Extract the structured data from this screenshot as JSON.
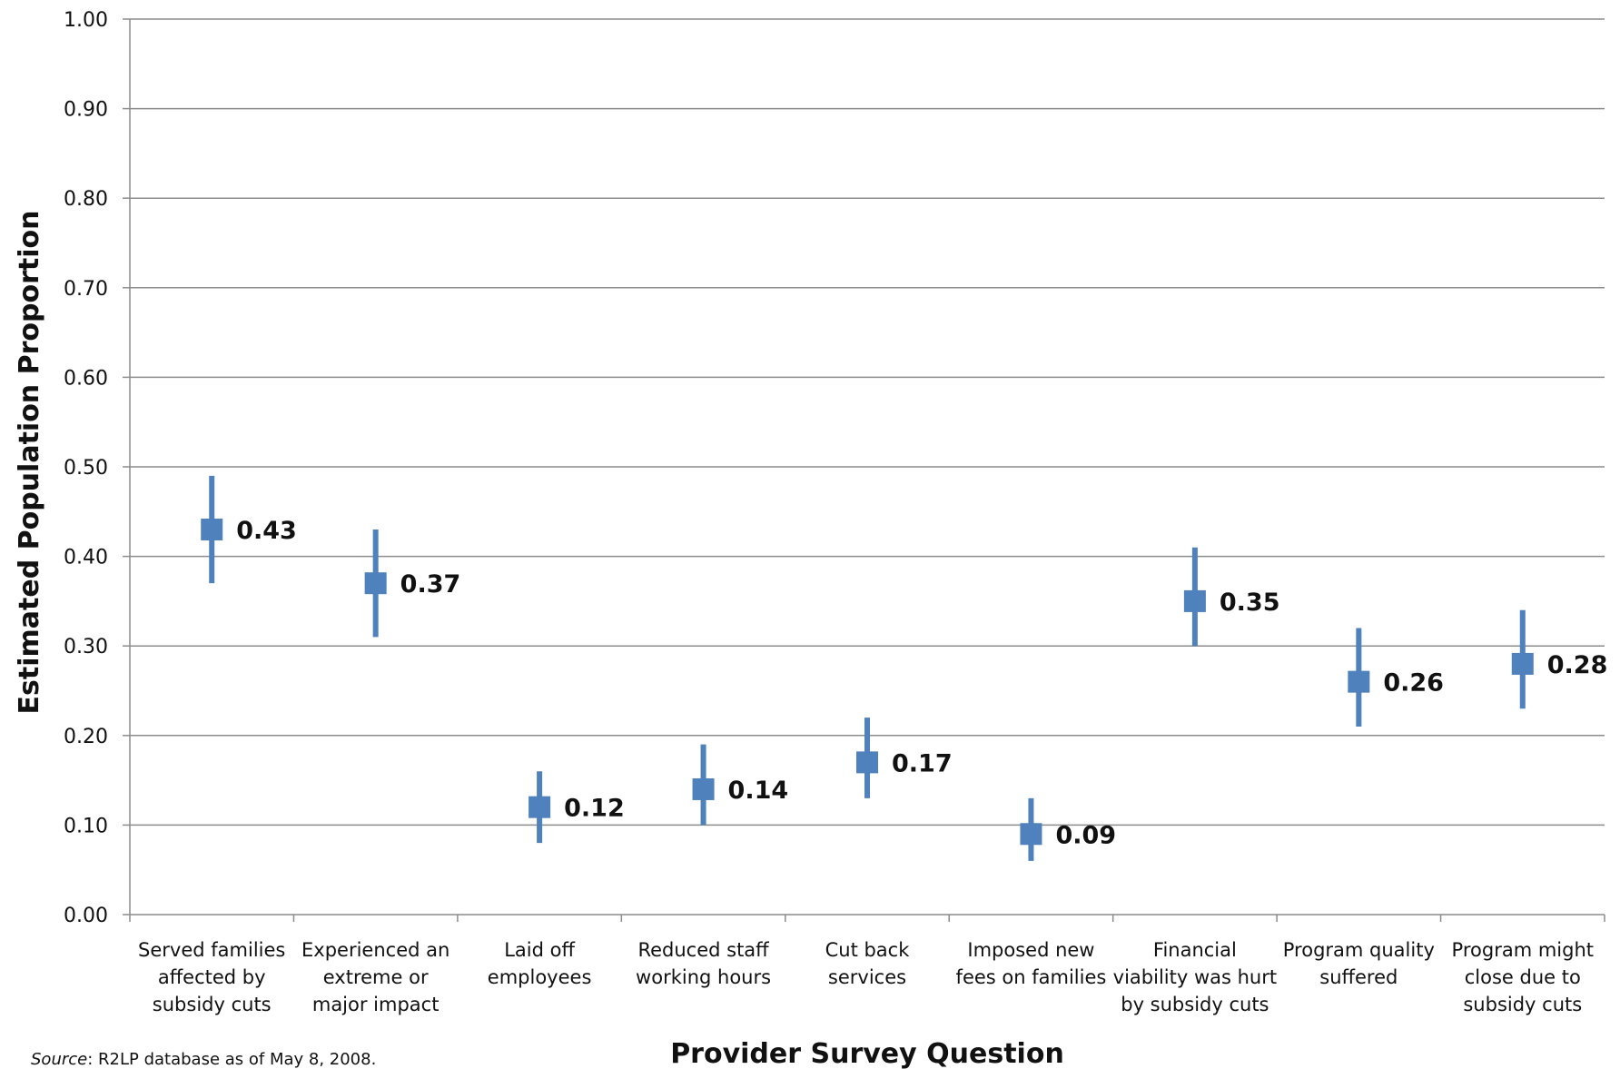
{
  "chart_data": {
    "type": "scatter",
    "xlabel": "Provider Survey Question",
    "ylabel": "Estimated Population Proportion",
    "ylim": [
      0,
      1
    ],
    "yticks": [
      "0.00",
      "0.10",
      "0.20",
      "0.30",
      "0.40",
      "0.50",
      "0.60",
      "0.70",
      "0.80",
      "0.90",
      "1.00"
    ],
    "grid": "horizontal",
    "accent_color": "#4F81BD",
    "categories": [
      [
        "Served families",
        "affected by",
        "subsidy cuts"
      ],
      [
        "Experienced an",
        "extreme or",
        "major impact"
      ],
      [
        "Laid off",
        "employees"
      ],
      [
        "Reduced staff",
        "working hours"
      ],
      [
        "Cut back",
        "services"
      ],
      [
        "Imposed new",
        "fees on families"
      ],
      [
        "Financial",
        "viability was hurt",
        "by subsidy cuts"
      ],
      [
        "Program quality",
        "suffered"
      ],
      [
        "Program might",
        "close due to",
        "subsidy cuts"
      ]
    ],
    "values": [
      0.43,
      0.37,
      0.12,
      0.14,
      0.17,
      0.09,
      0.35,
      0.26,
      0.28
    ],
    "lower": [
      0.37,
      0.31,
      0.08,
      0.1,
      0.13,
      0.06,
      0.3,
      0.21,
      0.23
    ],
    "upper": [
      0.49,
      0.43,
      0.16,
      0.19,
      0.22,
      0.13,
      0.41,
      0.32,
      0.34
    ],
    "data_labels": [
      "0.43",
      "0.37",
      "0.12",
      "0.14",
      "0.17",
      "0.09",
      "0.35",
      "0.26",
      "0.28"
    ]
  },
  "source": {
    "prefix": "Source",
    "text": ": R2LP database as of May 8, 2008."
  }
}
